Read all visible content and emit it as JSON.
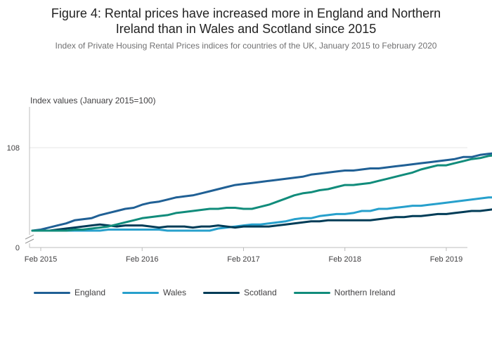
{
  "title_line1": "Figure 4: Rental prices have increased more in England and Northern",
  "title_line2": "Ireland than in Wales and Scotland since 2015",
  "subtitle": "Index of Private Housing Rental Prices indices for countries of the UK, January 2015 to February 2020",
  "colors": {
    "England": "#206095",
    "Wales": "#27a0cc",
    "Scotland": "#003c57",
    "Northern Ireland": "#118c7b"
  },
  "chart_data": {
    "type": "line",
    "ylabel": "Index values (January 2015=100)",
    "y_ticks": [
      "0",
      "108"
    ],
    "y_axis_break": true,
    "x_ticks": [
      "Feb 2015",
      "Feb 2016",
      "Feb 2017",
      "Feb 2018",
      "Feb 2019",
      "Feb 2020"
    ],
    "x_start": "Jan 2015",
    "x_end": "Feb 2020",
    "grid": "horizontal",
    "legend_position": "bottom",
    "series": [
      {
        "name": "England",
        "values": [
          100.0,
          100.1,
          100.3,
          100.5,
          100.7,
          101.0,
          101.1,
          101.2,
          101.5,
          101.7,
          101.9,
          102.1,
          102.2,
          102.5,
          102.7,
          102.8,
          103.0,
          103.2,
          103.3,
          103.4,
          103.6,
          103.8,
          104.0,
          104.2,
          104.4,
          104.5,
          104.6,
          104.7,
          104.8,
          104.9,
          105.0,
          105.1,
          105.2,
          105.4,
          105.5,
          105.6,
          105.7,
          105.8,
          105.8,
          105.9,
          106.0,
          106.0,
          106.1,
          106.2,
          106.3,
          106.4,
          106.5,
          106.6,
          106.7,
          106.8,
          106.9,
          107.1,
          107.1,
          107.3,
          107.4,
          107.5,
          107.5,
          107.7,
          107.8,
          107.9,
          108.0,
          108.0,
          108.2,
          108.3,
          108.4,
          108.5,
          108.5,
          108.6,
          108.7,
          108.7,
          108.9,
          109.0,
          109.0,
          109.0
        ]
      },
      {
        "name": "Wales",
        "values": [
          100.0,
          100.0,
          100.0,
          100.0,
          100.0,
          100.0,
          100.0,
          100.0,
          100.0,
          100.1,
          100.1,
          100.1,
          100.1,
          100.1,
          100.1,
          100.1,
          100.0,
          100.0,
          100.0,
          100.0,
          100.0,
          100.0,
          100.2,
          100.3,
          100.4,
          100.5,
          100.6,
          100.6,
          100.7,
          100.8,
          100.9,
          101.1,
          101.2,
          101.2,
          101.4,
          101.5,
          101.6,
          101.6,
          101.7,
          101.9,
          101.9,
          102.1,
          102.1,
          102.2,
          102.3,
          102.4,
          102.4,
          102.5,
          102.6,
          102.7,
          102.8,
          102.9,
          103.0,
          103.1,
          103.2,
          103.2,
          103.3,
          103.4,
          103.6,
          103.8,
          103.8,
          103.8,
          103.9,
          104.0,
          104.0,
          104.1,
          104.2,
          104.3,
          104.4,
          104.5,
          104.5,
          104.5,
          104.6,
          104.7,
          104.9,
          105.0,
          105.1,
          105.3,
          105.4,
          105.5,
          105.6,
          105.7,
          105.8,
          105.9,
          106.0
        ]
      },
      {
        "name": "Scotland",
        "values": [
          100.0,
          100.0,
          100.0,
          100.1,
          100.2,
          100.3,
          100.4,
          100.5,
          100.6,
          100.5,
          100.4,
          100.5,
          100.5,
          100.5,
          100.4,
          100.3,
          100.4,
          100.4,
          100.4,
          100.3,
          100.4,
          100.4,
          100.5,
          100.4,
          100.3,
          100.4,
          100.4,
          100.4,
          100.4,
          100.5,
          100.6,
          100.7,
          100.8,
          100.9,
          100.9,
          101.0,
          101.0,
          101.0,
          101.0,
          101.0,
          101.0,
          101.1,
          101.2,
          101.3,
          101.3,
          101.4,
          101.4,
          101.5,
          101.6,
          101.6,
          101.7,
          101.8,
          101.9,
          101.9,
          102.0,
          102.1,
          102.2,
          102.3,
          102.4,
          102.5,
          102.6,
          102.6,
          102.6,
          102.7,
          102.7,
          102.7,
          102.8,
          102.9,
          102.9,
          103.0,
          103.0,
          103.0,
          103.0,
          103.0,
          103.0,
          103.0,
          103.0,
          103.0,
          103.0
        ]
      },
      {
        "name": "Northern Ireland",
        "values": [
          100.0,
          100.0,
          100.0,
          100.0,
          100.0,
          100.1,
          100.1,
          100.2,
          100.3,
          100.4,
          100.6,
          100.8,
          101.0,
          101.2,
          101.3,
          101.4,
          101.5,
          101.7,
          101.8,
          101.9,
          102.0,
          102.1,
          102.1,
          102.2,
          102.2,
          102.1,
          102.1,
          102.3,
          102.5,
          102.8,
          103.1,
          103.4,
          103.6,
          103.7,
          103.9,
          104.0,
          104.2,
          104.4,
          104.4,
          104.5,
          104.6,
          104.8,
          105.0,
          105.2,
          105.4,
          105.6,
          105.9,
          106.1,
          106.3,
          106.3,
          106.5,
          106.7,
          106.9,
          107.0,
          107.2,
          107.3,
          107.5,
          107.7,
          108.0,
          108.2,
          108.5,
          108.8,
          109.0,
          109.1,
          109.3,
          109.3,
          109.0,
          109.0,
          109.0
        ]
      }
    ]
  }
}
